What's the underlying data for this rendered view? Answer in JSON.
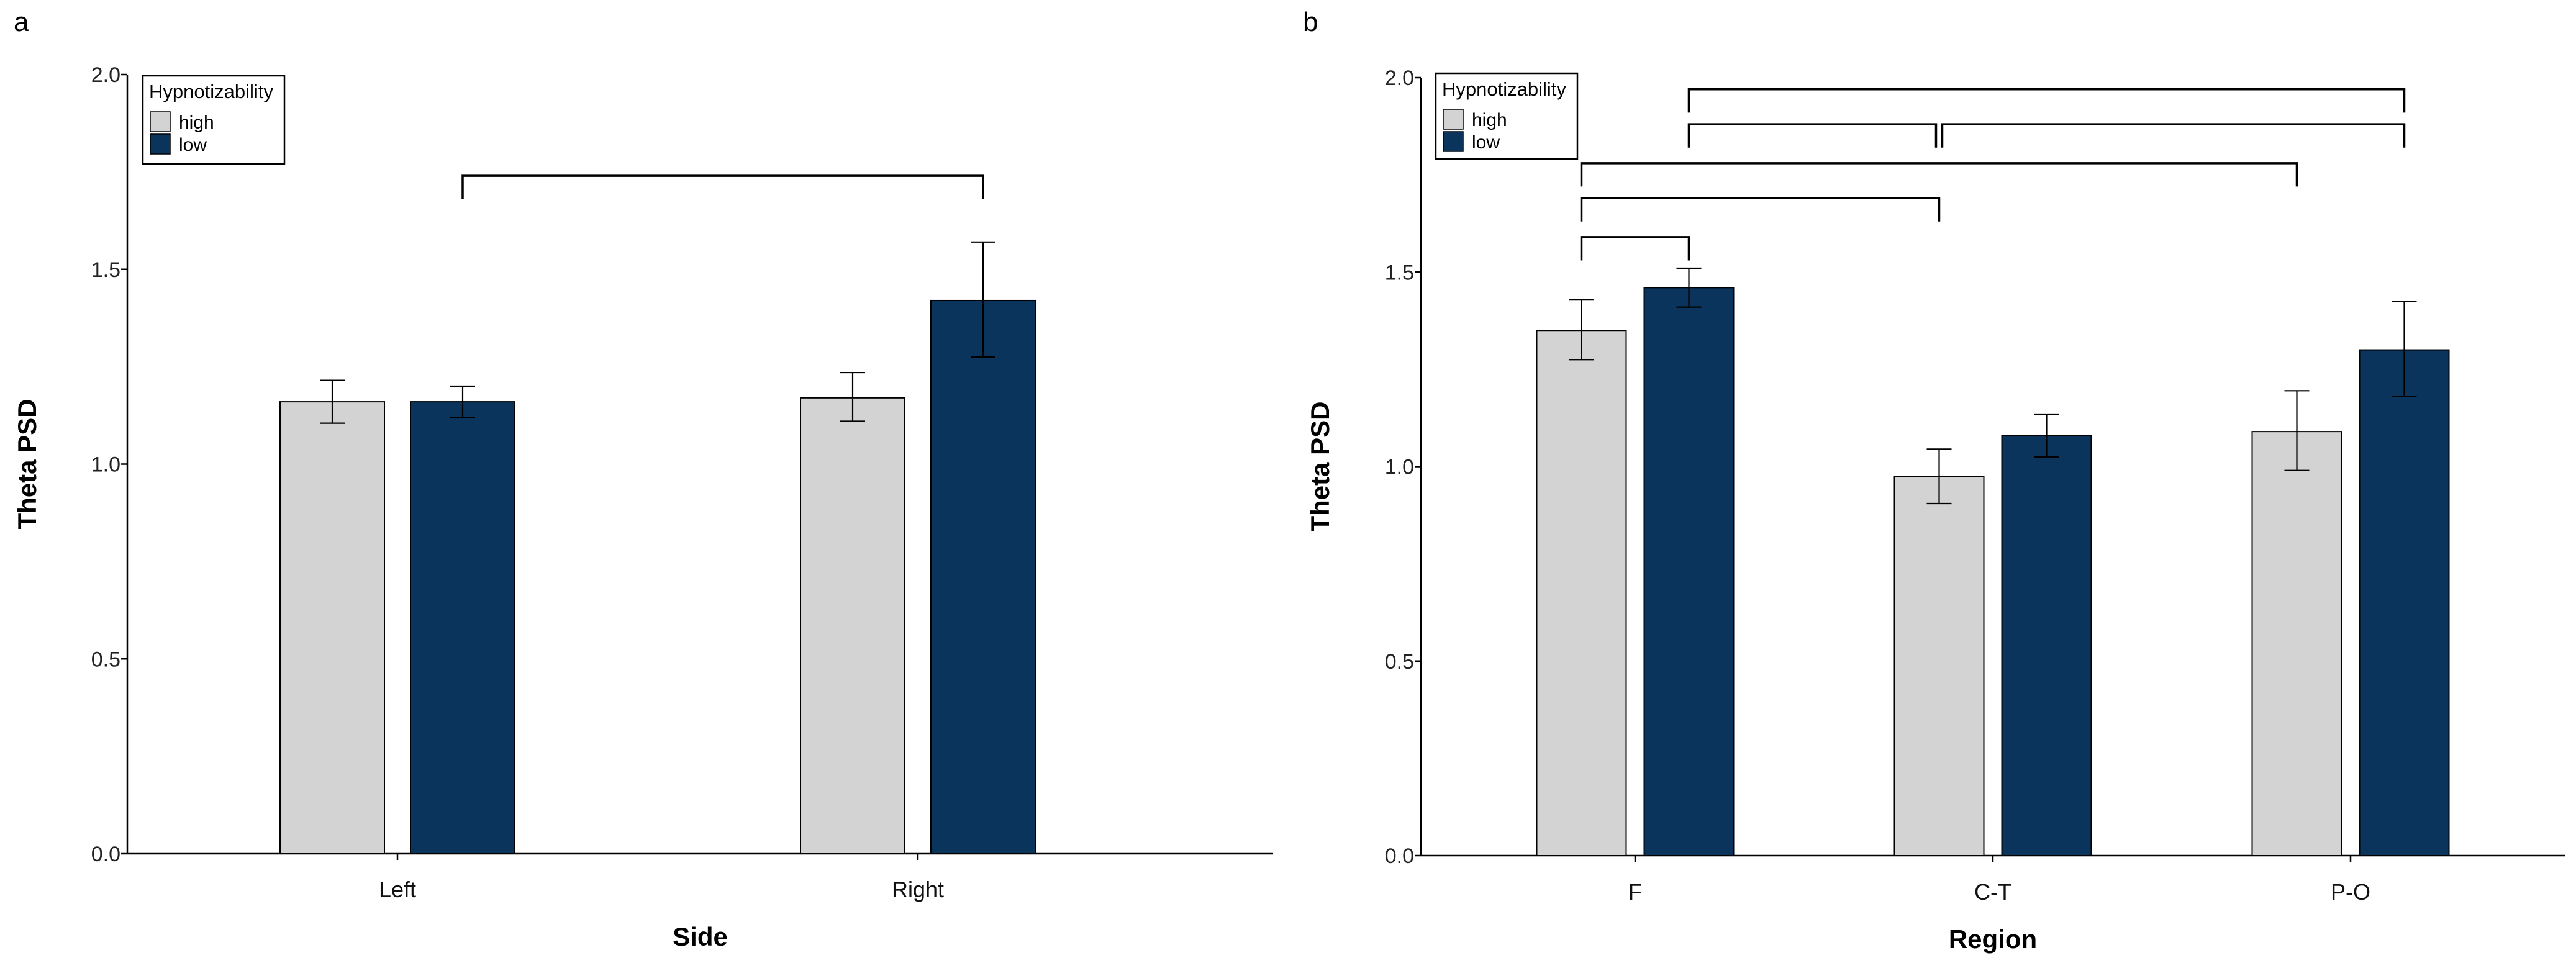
{
  "chart_data": [
    {
      "panel": "a",
      "type": "bar",
      "title": "",
      "xlabel": "Side",
      "ylabel": "Theta PSD",
      "ylim": [
        0,
        2.0
      ],
      "yticks": [
        "0.0",
        "0.5",
        "1.0",
        "1.5",
        "2.0"
      ],
      "ytick_values": [
        0,
        0.5,
        1.0,
        1.5,
        2.0
      ],
      "categories": [
        "Left",
        "Right"
      ],
      "legend": {
        "title": "Hypnotizability",
        "position": "top-left"
      },
      "series": [
        {
          "name": "high",
          "color": "#d3d3d3",
          "values": [
            1.16,
            1.17
          ],
          "err_low": [
            1.105,
            1.11
          ],
          "err_high": [
            1.215,
            1.235
          ]
        },
        {
          "name": "low",
          "color": "#0b345c",
          "values": [
            1.16,
            1.42
          ],
          "err_low": [
            1.12,
            1.275
          ],
          "err_high": [
            1.2,
            1.57
          ]
        }
      ],
      "brackets": [
        {
          "from": [
            0,
            1
          ],
          "to": [
            1,
            1
          ],
          "y": 1.74,
          "tip": 1.68
        }
      ]
    },
    {
      "panel": "b",
      "type": "bar",
      "title": "",
      "xlabel": "Region",
      "ylabel": "Theta PSD",
      "ylim": [
        0,
        2.0
      ],
      "yticks": [
        "0.0",
        "0.5",
        "1.0",
        "1.5",
        "2.0"
      ],
      "ytick_values": [
        0,
        0.5,
        1.0,
        1.5,
        2.0
      ],
      "categories": [
        "F",
        "C-T",
        "P-O"
      ],
      "legend": {
        "title": "Hypnotizability",
        "position": "top-left"
      },
      "series": [
        {
          "name": "high",
          "color": "#d3d3d3",
          "values": [
            1.35,
            0.975,
            1.09
          ],
          "err_low": [
            1.275,
            0.905,
            0.99
          ],
          "err_high": [
            1.43,
            1.045,
            1.195
          ]
        },
        {
          "name": "low",
          "color": "#0b345c",
          "values": [
            1.46,
            1.08,
            1.3
          ],
          "err_low": [
            1.41,
            1.025,
            1.18
          ],
          "err_high": [
            1.51,
            1.135,
            1.425
          ]
        }
      ],
      "brackets": [
        {
          "from": [
            0,
            0
          ],
          "to": [
            0,
            1
          ],
          "y": 1.59,
          "tip": 1.53
        },
        {
          "from": [
            0,
            0
          ],
          "to": [
            1,
            0
          ],
          "y": 1.69,
          "tip": 1.63
        },
        {
          "from": [
            0,
            0
          ],
          "to": [
            2,
            0
          ],
          "y": 1.78,
          "tip": 1.72
        },
        {
          "from": [
            0,
            1
          ],
          "to": [
            1,
            0
          ],
          "y": 1.88,
          "tip": 1.82
        },
        {
          "from": [
            1,
            0
          ],
          "to": [
            2,
            1
          ],
          "y": 1.88,
          "tip": 1.82
        },
        {
          "from": [
            0,
            1
          ],
          "to": [
            2,
            1
          ],
          "y": 1.97,
          "tip": 1.91
        }
      ]
    }
  ]
}
